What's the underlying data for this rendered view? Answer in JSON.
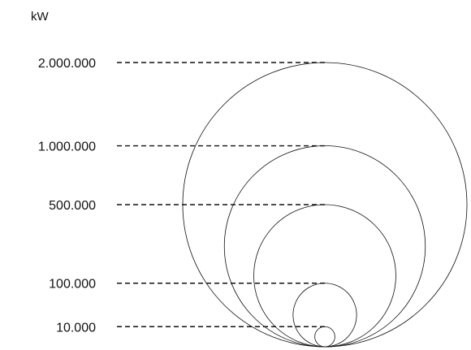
{
  "chart_data": {
    "type": "bubble-size-legend",
    "unit_label": "kW",
    "levels": [
      {
        "label": "2.000.000",
        "value": 2000000
      },
      {
        "label": "1.000.000",
        "value": 1000000
      },
      {
        "label": "500.000",
        "value": 500000
      },
      {
        "label": "100.000",
        "value": 100000
      },
      {
        "label": "10.000",
        "value": 10000
      }
    ],
    "title": "",
    "xlabel": "",
    "ylabel": "kW",
    "grid": false,
    "line_color": "#111111",
    "background_color": "#ffffff"
  }
}
